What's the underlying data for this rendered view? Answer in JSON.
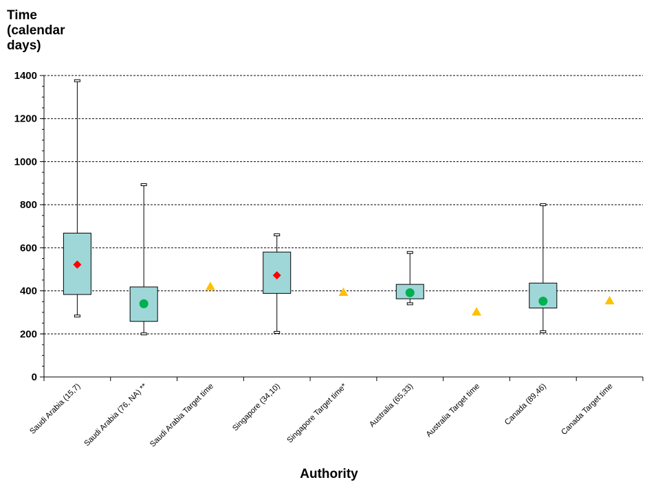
{
  "chart_data": {
    "type": "box",
    "ylabel_lines": [
      "Time",
      "(calendar",
      "days)"
    ],
    "xlabel": "Authority",
    "ylim": [
      0,
      1400
    ],
    "yticks": [
      0,
      200,
      400,
      600,
      800,
      1000,
      1200,
      1400
    ],
    "grid": "horizontal dashed at major ticks",
    "categories": [
      "Saudi Arabia (15,7)",
      "Saudi Arabia (76, NA) **",
      "Saudi Arabia Target time",
      "Singapore (34,10)",
      "Singapore Target time*",
      "Australia (65,33)",
      "Australia Target time",
      "Canada (89,46)",
      "Canada Target time"
    ],
    "boxes": [
      {
        "category": "Saudi Arabia (15,7)",
        "min": 283,
        "q1": 383,
        "q3": 668,
        "max": 1376,
        "center": 522,
        "marker": "diamond",
        "color": "#ff0000"
      },
      {
        "category": "Saudi Arabia (76, NA) **",
        "min": 200,
        "q1": 258,
        "q3": 418,
        "max": 893,
        "center": 340,
        "marker": "circle",
        "color": "#00b050"
      },
      {
        "category": "Singapore (34,10)",
        "min": 207,
        "q1": 388,
        "q3": 580,
        "max": 660,
        "center": 472,
        "marker": "diamond",
        "color": "#ff0000"
      },
      {
        "category": "Australia (65,33)",
        "min": 340,
        "q1": 363,
        "q3": 430,
        "max": 578,
        "center": 391,
        "marker": "circle",
        "color": "#00b050"
      },
      {
        "category": "Canada (89,46)",
        "min": 210,
        "q1": 320,
        "q3": 436,
        "max": 800,
        "center": 352,
        "marker": "circle",
        "color": "#00b050"
      }
    ],
    "targets": [
      {
        "category": "Saudi Arabia Target time",
        "value": 420
      },
      {
        "category": "Singapore Target time*",
        "value": 393
      },
      {
        "category": "Australia Target time",
        "value": 302
      },
      {
        "category": "Canada Target time",
        "value": 354
      }
    ],
    "colors": {
      "box_fill": "#9fd7d9",
      "target": "#ffc000",
      "diamond": "#ff0000",
      "circle": "#00b050"
    }
  }
}
